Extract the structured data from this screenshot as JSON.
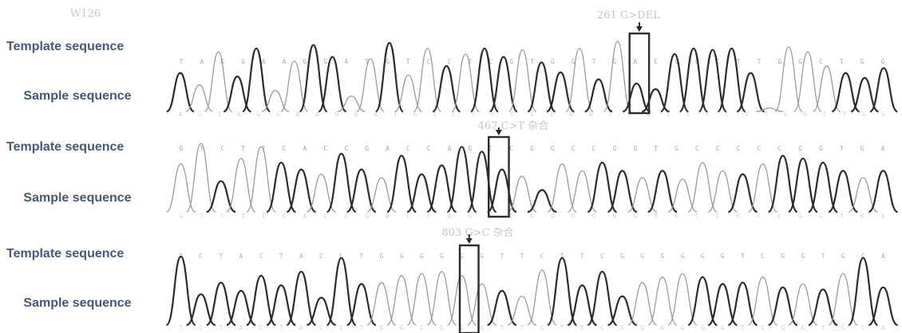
{
  "labels": {
    "template": "Template sequence",
    "sample": "Sample sequence"
  },
  "panels": [
    {
      "sample_id": "W126",
      "mutation": "261 G>DEL",
      "template_bases": "TAGGAAGGATGTCCTCGTGGTGACCCCTTGGCTGG",
      "sample_bases": "AGTAGGAAGGATGTCCTCGTGGTGACCCCTTGGCTGG",
      "peaks": [
        [
          0.55,
          1
        ],
        [
          0.38,
          0
        ],
        [
          0.85,
          0
        ],
        [
          0.5,
          1
        ],
        [
          0.9,
          1
        ],
        [
          0.3,
          0
        ],
        [
          0.72,
          0
        ],
        [
          0.95,
          1
        ],
        [
          0.78,
          1
        ],
        [
          0.22,
          0
        ],
        [
          0.75,
          0
        ],
        [
          0.98,
          1
        ],
        [
          0.52,
          0
        ],
        [
          0.9,
          0
        ],
        [
          0.65,
          1
        ],
        [
          0.82,
          0
        ],
        [
          0.9,
          1
        ],
        [
          0.78,
          1
        ],
        [
          0.88,
          0
        ],
        [
          0.7,
          1
        ],
        [
          0.56,
          1
        ],
        [
          0.9,
          0
        ],
        [
          0.46,
          1
        ],
        [
          1.0,
          0
        ],
        [
          0.4,
          1
        ],
        [
          0.32,
          1
        ],
        [
          0.82,
          1
        ],
        [
          0.9,
          1
        ],
        [
          0.88,
          1
        ],
        [
          0.9,
          1
        ],
        [
          0.55,
          1
        ],
        [
          0.05,
          0
        ],
        [
          0.92,
          0
        ],
        [
          0.85,
          0
        ],
        [
          0.65,
          0
        ],
        [
          0.55,
          1
        ],
        [
          0.48,
          1
        ],
        [
          0.62,
          1
        ]
      ],
      "box_x_frac": 0.635,
      "box_w_frac": 0.027,
      "header_frac": 0.59
    },
    {
      "sample_id": "",
      "mutation": "467 C>T 杂合",
      "template_bases": "GTCTTCACCGACCAGCCGGCCGGTGCCCCCGGTGA",
      "sample_bases": "GTCTTCACCGACCAGCCGGCCGGTGCCCCCGGTGA",
      "peaks": [
        [
          0.7,
          0
        ],
        [
          1.0,
          0
        ],
        [
          0.45,
          1
        ],
        [
          0.78,
          0
        ],
        [
          0.95,
          0
        ],
        [
          0.72,
          1
        ],
        [
          0.62,
          1
        ],
        [
          0.55,
          0
        ],
        [
          0.85,
          1
        ],
        [
          0.62,
          1
        ],
        [
          0.5,
          0
        ],
        [
          0.82,
          1
        ],
        [
          0.55,
          1
        ],
        [
          0.68,
          1
        ],
        [
          0.95,
          1
        ],
        [
          0.88,
          1
        ],
        [
          0.62,
          1
        ],
        [
          0.52,
          0
        ],
        [
          0.32,
          1
        ],
        [
          0.7,
          0
        ],
        [
          0.6,
          0
        ],
        [
          0.72,
          1
        ],
        [
          0.6,
          1
        ],
        [
          0.5,
          0
        ],
        [
          0.6,
          1
        ],
        [
          0.48,
          0
        ],
        [
          0.72,
          0
        ],
        [
          0.6,
          0
        ],
        [
          0.55,
          1
        ],
        [
          0.7,
          0
        ],
        [
          0.82,
          1
        ],
        [
          0.78,
          1
        ],
        [
          0.72,
          1
        ],
        [
          0.6,
          1
        ],
        [
          0.5,
          0
        ],
        [
          0.6,
          1
        ]
      ],
      "box_x_frac": 0.44,
      "box_w_frac": 0.028,
      "header_frac": 0.425
    },
    {
      "sample_id": "",
      "mutation": "803 G>C 杂合",
      "template_bases": "TCTACTACCTGGGGGGTTCTTCGGGGGGTCGGTGCA",
      "sample_bases": "TCTACTACCTGGGGGGTTCTTCGGGGGGTCGGTGCA",
      "peaks": [
        [
          1.0,
          1
        ],
        [
          0.45,
          1
        ],
        [
          0.62,
          1
        ],
        [
          0.5,
          1
        ],
        [
          0.72,
          1
        ],
        [
          0.58,
          1
        ],
        [
          0.78,
          1
        ],
        [
          0.4,
          1
        ],
        [
          0.98,
          1
        ],
        [
          0.6,
          1
        ],
        [
          0.62,
          0
        ],
        [
          0.72,
          0
        ],
        [
          0.75,
          0
        ],
        [
          0.78,
          0
        ],
        [
          0.72,
          0
        ],
        [
          0.6,
          0
        ],
        [
          0.5,
          1
        ],
        [
          0.42,
          0
        ],
        [
          0.8,
          0
        ],
        [
          0.98,
          1
        ],
        [
          0.58,
          1
        ],
        [
          0.78,
          1
        ],
        [
          0.42,
          1
        ],
        [
          0.62,
          0
        ],
        [
          0.7,
          0
        ],
        [
          0.75,
          0
        ],
        [
          0.7,
          1
        ],
        [
          0.6,
          1
        ],
        [
          0.62,
          1
        ],
        [
          0.7,
          0
        ],
        [
          0.55,
          1
        ],
        [
          0.6,
          0
        ],
        [
          0.52,
          1
        ],
        [
          0.75,
          0
        ],
        [
          0.98,
          1
        ],
        [
          0.55,
          1
        ]
      ],
      "box_x_frac": 0.4,
      "box_w_frac": 0.026,
      "header_frac": 0.375
    }
  ]
}
